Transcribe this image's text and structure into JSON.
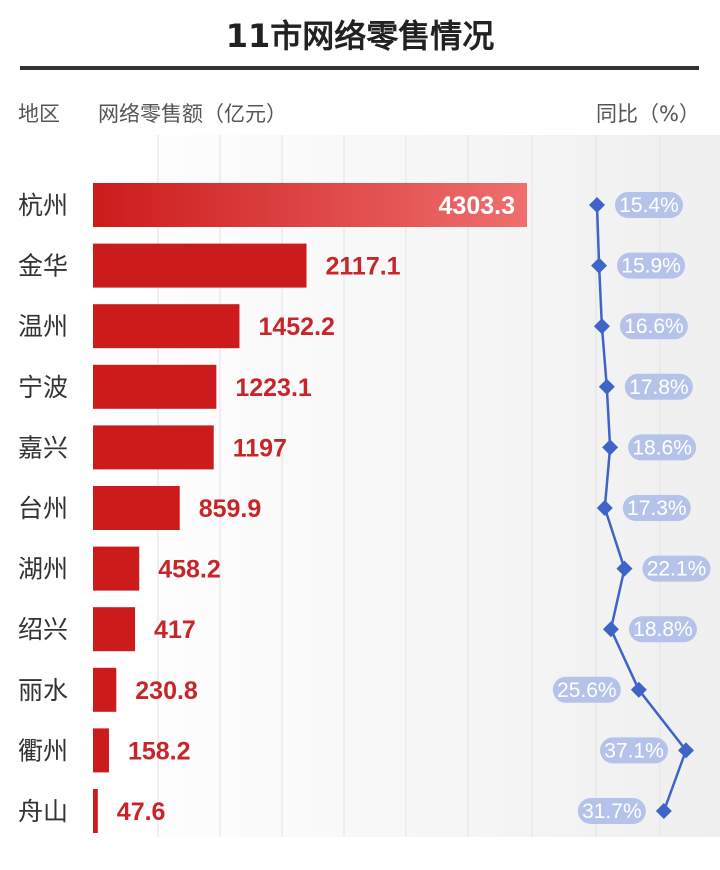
{
  "chart_data": {
    "type": "bar",
    "title": "11市网络零售情况",
    "header_region": "地区",
    "header_value": "网络零售额（亿元）",
    "header_yoy": "同比（%）",
    "categories": [
      "杭州",
      "金华",
      "温州",
      "宁波",
      "嘉兴",
      "台州",
      "湖州",
      "绍兴",
      "丽水",
      "衢州",
      "舟山"
    ],
    "series": [
      {
        "name": "网络零售额（亿元）",
        "values": [
          4303.3,
          2117.1,
          1452.2,
          1223.1,
          1197,
          859.9,
          458.2,
          417,
          230.8,
          158.2,
          47.6
        ],
        "labels": [
          "4303.3",
          "2117.1",
          "1452.2",
          "1223.1",
          "1197",
          "859.9",
          "458.2",
          "417",
          "230.8",
          "158.2",
          "47.6"
        ]
      },
      {
        "name": "同比（%）",
        "values": [
          15.4,
          15.9,
          16.6,
          17.8,
          18.6,
          17.3,
          22.1,
          18.8,
          25.6,
          37.1,
          31.7
        ],
        "labels": [
          "15.4%",
          "15.9%",
          "16.6%",
          "17.8%",
          "18.6%",
          "17.3%",
          "22.1%",
          "18.8%",
          "25.6%",
          "37.1%",
          "31.7%"
        ]
      }
    ],
    "colors": {
      "bar_dark": "#cc1b1b",
      "bar_light": "#ef6f6f",
      "value_text": "#c8252a",
      "line": "#3f64c8",
      "badge": "#b5c3ea",
      "rule": "#333333"
    }
  }
}
